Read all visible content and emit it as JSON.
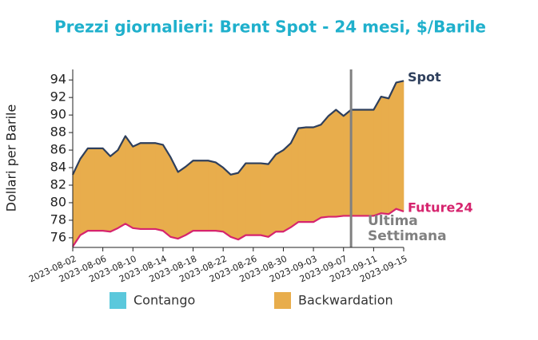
{
  "chart_data": {
    "type": "area-between",
    "title": "Prezzi giornalieri: Brent Spot - 24 mesi, $/Barile",
    "y_label": "Dollari per Barile",
    "x": [
      "2023-08-02",
      "2023-08-03",
      "2023-08-04",
      "2023-08-05",
      "2023-08-06",
      "2023-08-07",
      "2023-08-08",
      "2023-08-09",
      "2023-08-10",
      "2023-08-11",
      "2023-08-12",
      "2023-08-13",
      "2023-08-14",
      "2023-08-15",
      "2023-08-16",
      "2023-08-17",
      "2023-08-18",
      "2023-08-19",
      "2023-08-20",
      "2023-08-21",
      "2023-08-22",
      "2023-08-23",
      "2023-08-24",
      "2023-08-25",
      "2023-08-26",
      "2023-08-27",
      "2023-08-28",
      "2023-08-29",
      "2023-08-30",
      "2023-08-31",
      "2023-09-01",
      "2023-09-02",
      "2023-09-03",
      "2023-09-04",
      "2023-09-05",
      "2023-09-06",
      "2023-09-07",
      "2023-09-08",
      "2023-09-09",
      "2023-09-10",
      "2023-09-11",
      "2023-09-12",
      "2023-09-13",
      "2023-09-14",
      "2023-09-15"
    ],
    "series": [
      {
        "name": "Spot",
        "color": "#2e3f5c",
        "values": [
          83.2,
          85.0,
          86.2,
          86.2,
          86.2,
          85.3,
          86.0,
          87.6,
          86.4,
          86.8,
          86.8,
          86.8,
          86.6,
          85.2,
          83.5,
          84.1,
          84.8,
          84.8,
          84.8,
          84.6,
          84.0,
          83.2,
          83.4,
          84.5,
          84.5,
          84.5,
          84.4,
          85.5,
          86.0,
          86.8,
          88.5,
          88.6,
          88.6,
          88.9,
          89.9,
          90.6,
          89.9,
          90.6,
          90.6,
          90.6,
          90.6,
          92.1,
          91.9,
          93.7,
          93.9
        ]
      },
      {
        "name": "Future24",
        "color": "#d6246e",
        "values": [
          75.0,
          76.3,
          76.8,
          76.8,
          76.8,
          76.7,
          77.1,
          77.6,
          77.1,
          77.0,
          77.0,
          77.0,
          76.8,
          76.1,
          75.9,
          76.3,
          76.8,
          76.8,
          76.8,
          76.8,
          76.7,
          76.1,
          75.8,
          76.3,
          76.3,
          76.3,
          76.1,
          76.7,
          76.7,
          77.2,
          77.8,
          77.8,
          77.8,
          78.3,
          78.4,
          78.4,
          78.5,
          78.5,
          78.5,
          78.5,
          78.5,
          78.8,
          78.7,
          79.3,
          79.0
        ]
      }
    ],
    "fill_legend": [
      {
        "name": "Contango",
        "color": "#5bc8dc"
      },
      {
        "name": "Backwardation",
        "color": "#e8ad4c"
      }
    ],
    "vline": {
      "x": "2023-09-08",
      "label": [
        "Ultima",
        "Settimana"
      ],
      "color": "#808080"
    },
    "xlim": [
      "2023-08-02",
      "2023-09-15"
    ],
    "xticks": [
      "2023-08-02",
      "2023-08-06",
      "2023-08-10",
      "2023-08-14",
      "2023-08-18",
      "2023-08-22",
      "2023-08-26",
      "2023-08-30",
      "2023-09-03",
      "2023-09-07",
      "2023-09-11",
      "2023-09-15"
    ],
    "ylim": [
      74.9,
      95.2
    ],
    "yticks": [
      76,
      78,
      80,
      82,
      84,
      86,
      88,
      90,
      92,
      94
    ]
  }
}
